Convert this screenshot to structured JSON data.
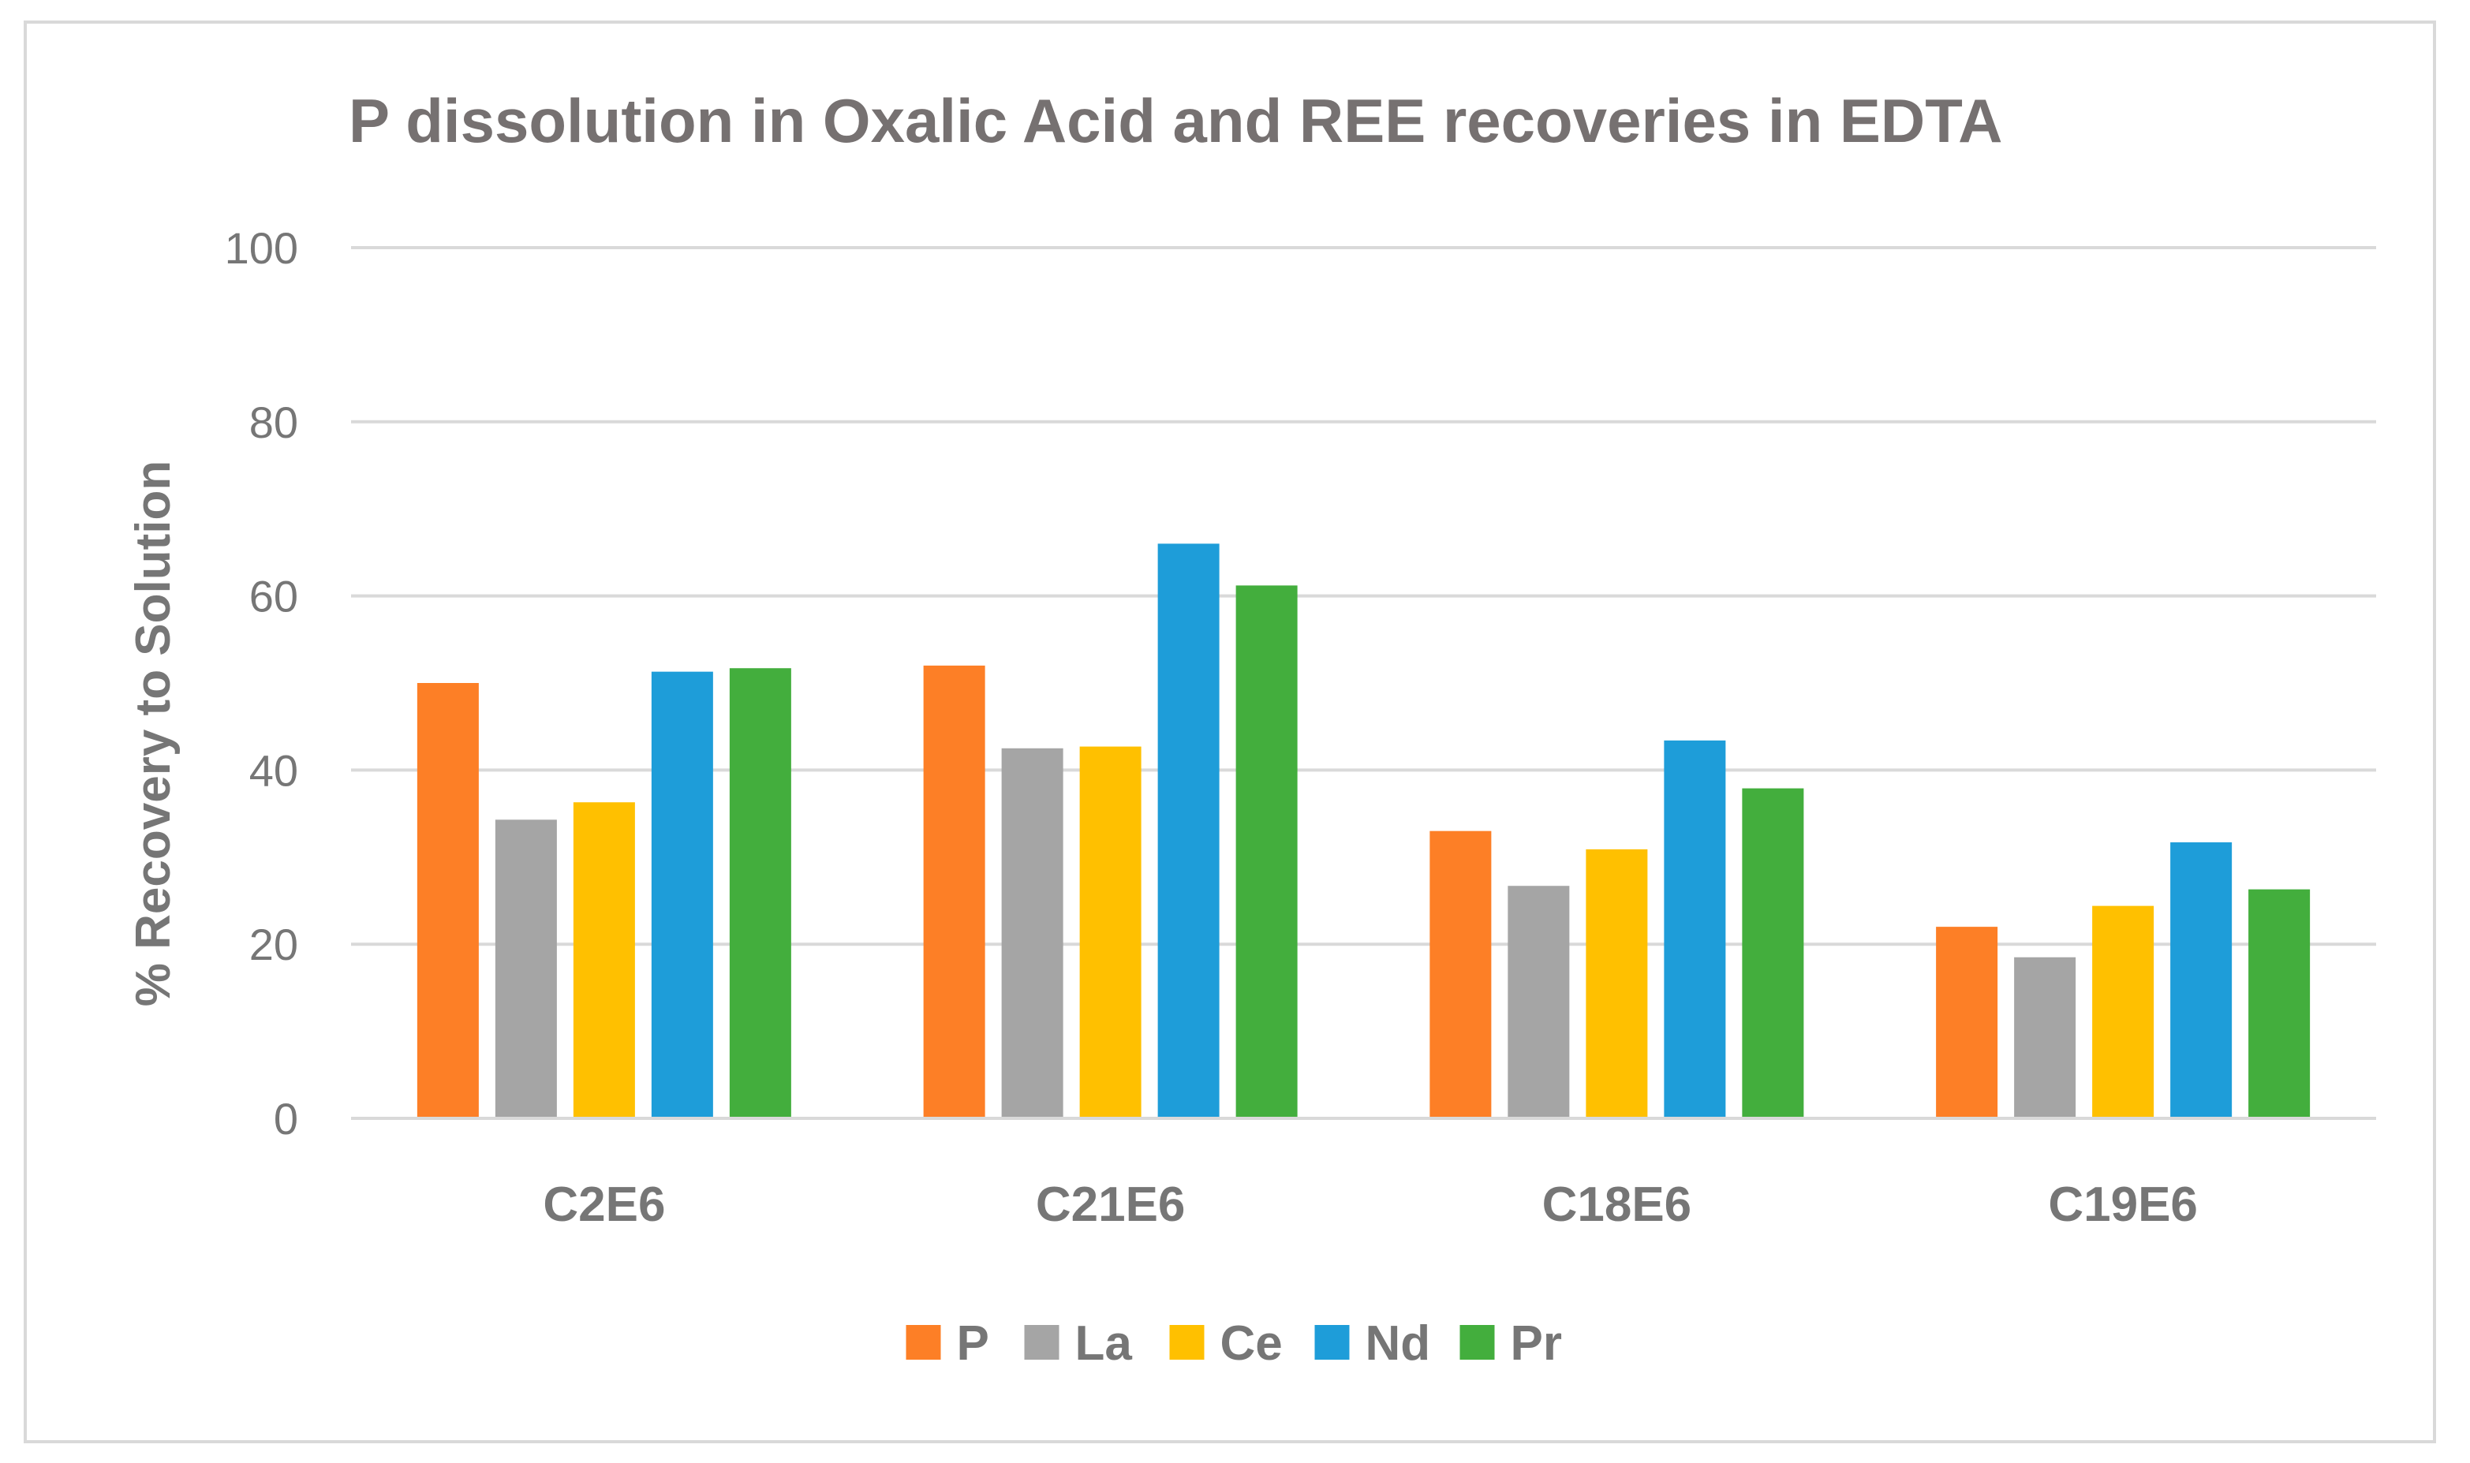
{
  "chart_data": {
    "type": "bar",
    "title": "P dissolution in Oxalic Acid and REE recoveries in EDTA",
    "xlabel": "",
    "ylabel": "% Recovery to Solution",
    "ylim": [
      0,
      100
    ],
    "yticks": [
      0,
      20,
      40,
      60,
      80,
      100
    ],
    "grid": true,
    "legend_position": "bottom",
    "categories": [
      "C2E6",
      "C21E6",
      "C18E6",
      "C19E6"
    ],
    "series": [
      {
        "name": "P",
        "color": "#fd7f26",
        "values": [
          50.0,
          52.0,
          33.0,
          22.0
        ]
      },
      {
        "name": "La",
        "color": "#a5a5a5",
        "values": [
          34.3,
          42.5,
          26.7,
          18.5
        ]
      },
      {
        "name": "Ce",
        "color": "#ffc000",
        "values": [
          36.3,
          42.7,
          30.9,
          24.4
        ]
      },
      {
        "name": "Nd",
        "color": "#1e9dd9",
        "values": [
          51.3,
          66.0,
          43.4,
          31.7
        ]
      },
      {
        "name": "Pr",
        "color": "#43ae3d",
        "values": [
          51.7,
          61.2,
          37.9,
          26.3
        ]
      }
    ]
  }
}
